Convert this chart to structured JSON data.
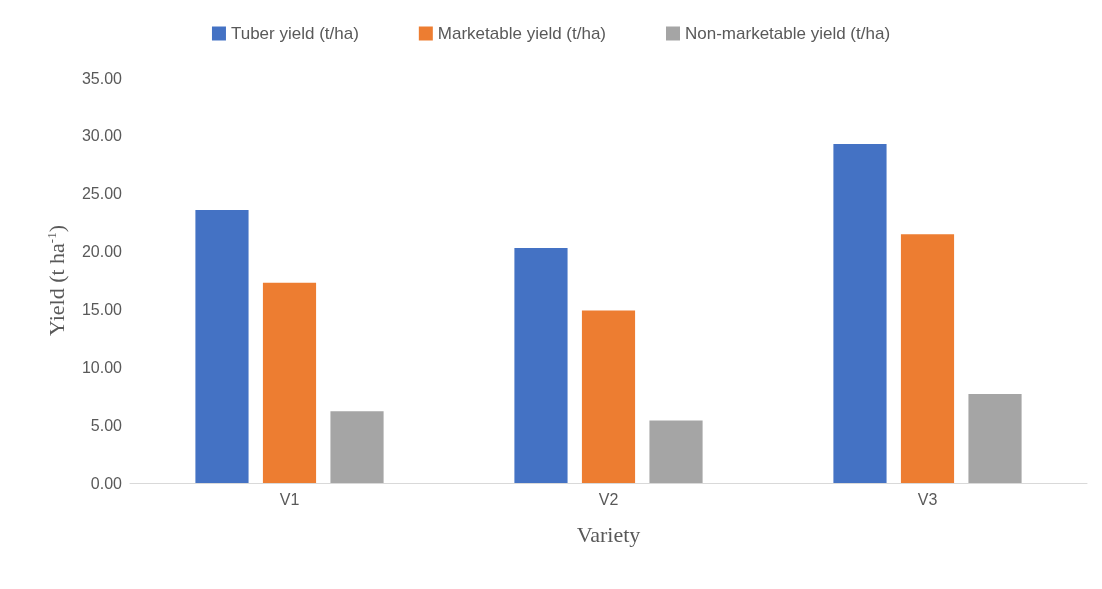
{
  "chart_data": {
    "type": "bar",
    "xlabel": "Variety",
    "ylabel": "Yield (t ha$^{-1}$)",
    "categories": [
      "V1",
      "V2",
      "V3"
    ],
    "series": [
      {
        "name": "Tuber yield (t/ha)",
        "color": "#4472c4",
        "values": [
          23.6,
          20.3,
          29.3
        ]
      },
      {
        "name": "Marketable yield (t/ha)",
        "color": "#ed7d31",
        "values": [
          17.3,
          14.9,
          21.5
        ]
      },
      {
        "name": "Non-marketable yield (t/ha)",
        "color": "#a5a5a5",
        "values": [
          6.2,
          5.4,
          7.7
        ]
      }
    ],
    "ylim": [
      0,
      35
    ],
    "yticks": [
      {
        "value": 0,
        "label": "0.00"
      },
      {
        "value": 5,
        "label": "5.00"
      },
      {
        "value": 10,
        "label": "10.00"
      },
      {
        "value": 15,
        "label": "15.00"
      },
      {
        "value": 20,
        "label": "20.00"
      },
      {
        "value": 25,
        "label": "25.00"
      },
      {
        "value": 30,
        "label": "30.00"
      },
      {
        "value": 35,
        "label": "35.00"
      }
    ],
    "grid": false,
    "legend": "top"
  }
}
